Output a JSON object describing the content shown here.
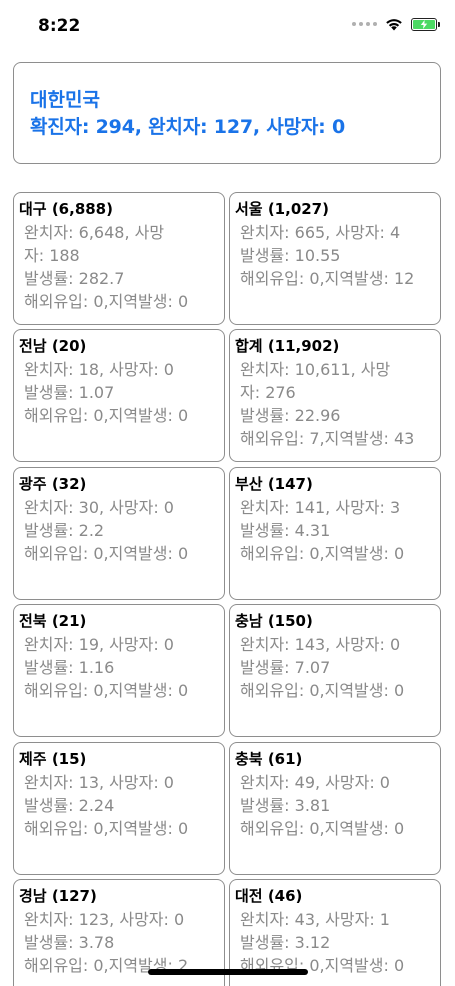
{
  "status_bar": {
    "time": "8:22",
    "icons": [
      "signal-dots-icon",
      "wifi-icon",
      "battery-charging-icon"
    ],
    "battery_color": "#4cd964"
  },
  "summary": {
    "country": "대한민국",
    "stats": "확진자: 294, 완치자: 127, 사망자: 0",
    "color": "#1a73e8"
  },
  "regions": [
    {
      "title": "대구 (6,888)",
      "lines": [
        "완치자: 6,648, 사망",
        "자: 188",
        "발생률: 282.7",
        "해외유입: 0,지역발생: 0"
      ]
    },
    {
      "title": "서울 (1,027)",
      "lines": [
        "완치자: 665, 사망자: 4",
        "발생률: 10.55",
        "해외유입: 0,지역발생: 12"
      ]
    },
    {
      "title": "전남 (20)",
      "lines": [
        "완치자: 18, 사망자: 0",
        "발생률: 1.07",
        "해외유입: 0,지역발생: 0"
      ]
    },
    {
      "title": "합계 (11,902)",
      "lines": [
        "완치자: 10,611, 사망",
        "자: 276",
        "발생률: 22.96",
        "해외유입: 7,지역발생: 43"
      ]
    },
    {
      "title": "광주 (32)",
      "lines": [
        "완치자: 30, 사망자: 0",
        "발생률: 2.2",
        "해외유입: 0,지역발생: 0"
      ]
    },
    {
      "title": "부산 (147)",
      "lines": [
        "완치자: 141, 사망자: 3",
        "발생률: 4.31",
        "해외유입: 0,지역발생: 0"
      ]
    },
    {
      "title": "전북 (21)",
      "lines": [
        "완치자: 19, 사망자: 0",
        "발생률: 1.16",
        "해외유입: 0,지역발생: 0"
      ]
    },
    {
      "title": "충남 (150)",
      "lines": [
        "완치자: 143, 사망자: 0",
        "발생률: 7.07",
        "해외유입: 0,지역발생: 0"
      ]
    },
    {
      "title": "제주 (15)",
      "lines": [
        "완치자: 13, 사망자: 0",
        "발생률: 2.24",
        "해외유입: 0,지역발생: 0"
      ]
    },
    {
      "title": "충북 (61)",
      "lines": [
        "완치자: 49, 사망자: 0",
        "발생률: 3.81",
        "해외유입: 0,지역발생: 0"
      ]
    },
    {
      "title": "경남 (127)",
      "lines": [
        "완치자: 123, 사망자: 0",
        "발생률: 3.78",
        "해외유입: 0,지역발생: 2"
      ]
    },
    {
      "title": "대전 (46)",
      "lines": [
        "완치자: 43, 사망자: 1",
        "발생률: 3.12",
        "해외유입: 0,지역발생: 0"
      ]
    }
  ]
}
